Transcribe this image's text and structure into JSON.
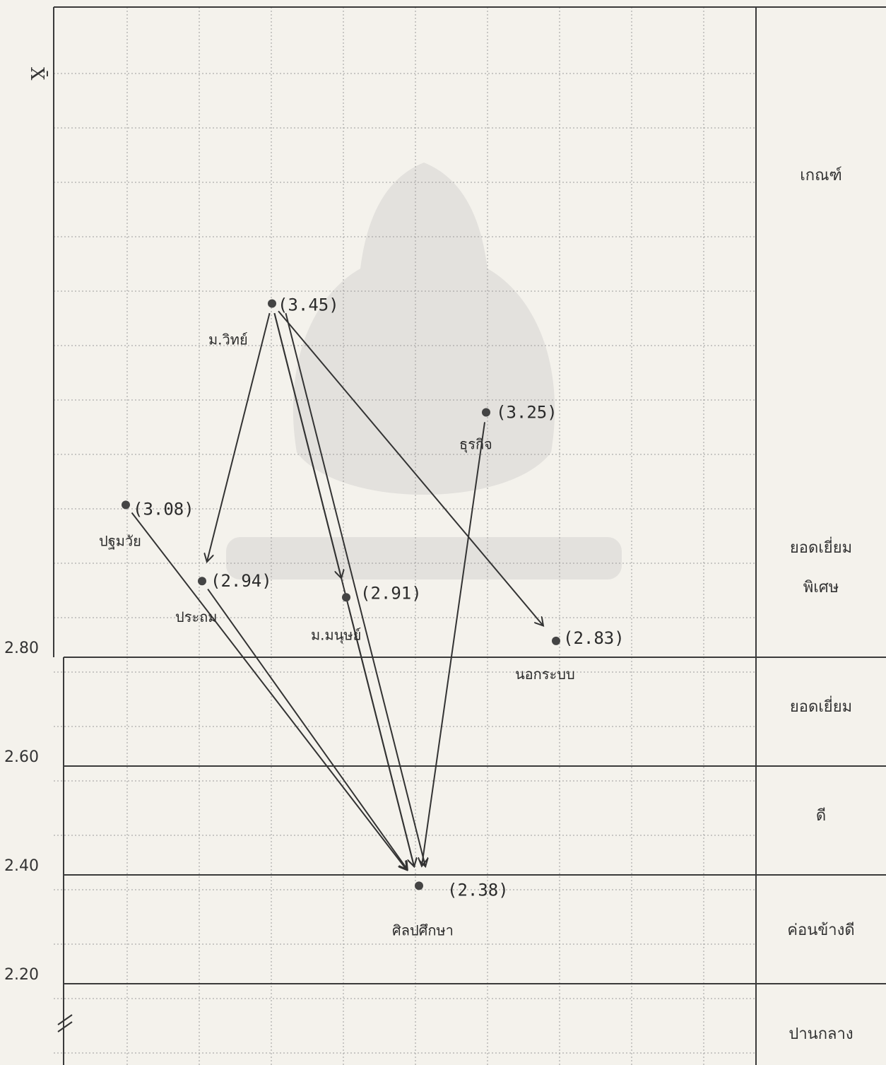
{
  "chart_data": {
    "type": "scatter",
    "ylabel": "X̄",
    "y_ticks": [
      2.8,
      2.6,
      2.4,
      2.2
    ],
    "y_tick_labels": [
      "2.80",
      "2.60",
      "2.40",
      "2.20"
    ],
    "axis_break": true,
    "grid": true,
    "levels": [
      {
        "label": "เกณฑ์"
      },
      {
        "label": "ยอดเยี่ยม\nพิเศษ"
      },
      {
        "label": "ยอดเยี่ยม"
      },
      {
        "label": "ดี"
      },
      {
        "label": "ค่อนข้างดี"
      },
      {
        "label": "ปานกลาง"
      }
    ],
    "points": [
      {
        "id": "sci",
        "name": "ม.วิทย์",
        "value": 3.45,
        "value_label": "(3.45)"
      },
      {
        "id": "bus",
        "name": "ธุรกิจ",
        "value": 3.25,
        "value_label": "(3.25)"
      },
      {
        "id": "pre",
        "name": "ปฐมวัย",
        "value": 3.08,
        "value_label": "(3.08)"
      },
      {
        "id": "pri",
        "name": "ประถม",
        "value": 2.94,
        "value_label": "(2.94)"
      },
      {
        "id": "hum",
        "name": "ม.มนุษย์",
        "value": 2.91,
        "value_label": "(2.91)"
      },
      {
        "id": "nfe",
        "name": "นอกระบบ",
        "value": 2.83,
        "value_label": "(2.83)"
      },
      {
        "id": "art",
        "name": "ศิลปศึกษา",
        "value": 2.38,
        "value_label": "(2.38)"
      }
    ],
    "arrows": [
      {
        "from": "sci",
        "to": "pri"
      },
      {
        "from": "sci",
        "to": "hum"
      },
      {
        "from": "sci",
        "to": "nfe"
      },
      {
        "from": "sci",
        "to": "art"
      },
      {
        "from": "sci",
        "to": "art"
      },
      {
        "from": "bus",
        "to": "art"
      },
      {
        "from": "pre",
        "to": "art"
      },
      {
        "from": "pri",
        "to": "art"
      },
      {
        "from": "hum",
        "to": "art"
      }
    ]
  }
}
